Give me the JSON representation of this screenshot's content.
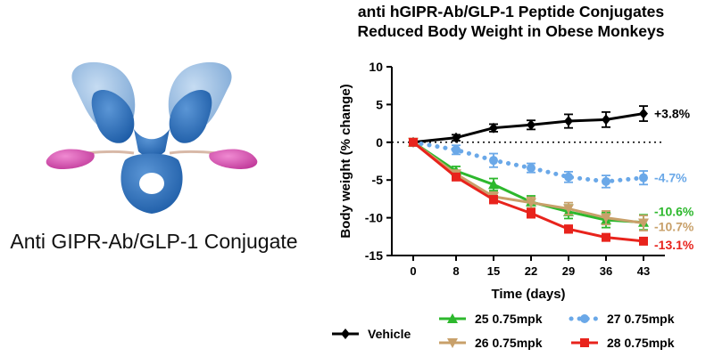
{
  "caption": "Anti GIPR-Ab/GLP-1 Conjugate",
  "chart_data": {
    "type": "line",
    "title_lines": [
      "anti hGIPR-Ab/GLP-1 Peptide Conjugates",
      "Reduced Body Weight in Obese Monkeys"
    ],
    "xlabel": "Time (days)",
    "ylabel": "Body weight (% change)",
    "x": [
      0,
      8,
      15,
      22,
      29,
      36,
      43
    ],
    "xlim": [
      -4,
      47
    ],
    "ylim": [
      -15,
      10
    ],
    "yticks": [
      10,
      5,
      0,
      -5,
      -10,
      -15
    ],
    "reference_line_y": 0,
    "series": [
      {
        "name": "Vehicle",
        "color": "#000000",
        "marker": "diamond",
        "style": "solid",
        "values": [
          0,
          0.6,
          1.9,
          2.3,
          2.8,
          3.0,
          3.8
        ],
        "err": [
          0.2,
          0.4,
          0.5,
          0.6,
          0.9,
          1.0,
          1.0
        ],
        "end_label": "+3.8%"
      },
      {
        "name": "25 0.75mpk",
        "color": "#2db82d",
        "marker": "triangle-up",
        "style": "solid",
        "values": [
          0,
          -3.8,
          -5.6,
          -7.9,
          -9.2,
          -10.3,
          -10.6
        ],
        "err": [
          0.2,
          0.6,
          0.8,
          0.8,
          0.9,
          1.0,
          1.0
        ],
        "end_label": "-10.6%"
      },
      {
        "name": "26 0.75mpk",
        "color": "#c8a06a",
        "marker": "triangle-down",
        "style": "solid",
        "values": [
          0,
          -4.2,
          -7.2,
          -8.0,
          -8.8,
          -10.0,
          -10.7
        ],
        "err": [
          0.2,
          0.5,
          0.6,
          0.7,
          0.8,
          0.9,
          1.0
        ],
        "end_label": "-10.7%"
      },
      {
        "name": "27 0.75mpk",
        "color": "#6aa8e8",
        "marker": "circle",
        "style": "dotted",
        "values": [
          0,
          -1.0,
          -2.4,
          -3.4,
          -4.6,
          -5.2,
          -4.7
        ],
        "err": [
          0.2,
          0.6,
          0.9,
          0.6,
          0.7,
          0.8,
          0.9
        ],
        "end_label": "-4.7%"
      },
      {
        "name": "28 0.75mpk",
        "color": "#e8231c",
        "marker": "square",
        "style": "solid",
        "values": [
          0,
          -4.6,
          -7.6,
          -9.4,
          -11.5,
          -12.6,
          -13.1
        ],
        "err": [
          0.2,
          0.4,
          0.5,
          0.6,
          0.5,
          0.4,
          0.4
        ],
        "end_label": "-13.1%"
      }
    ],
    "legend_position": "bottom"
  }
}
